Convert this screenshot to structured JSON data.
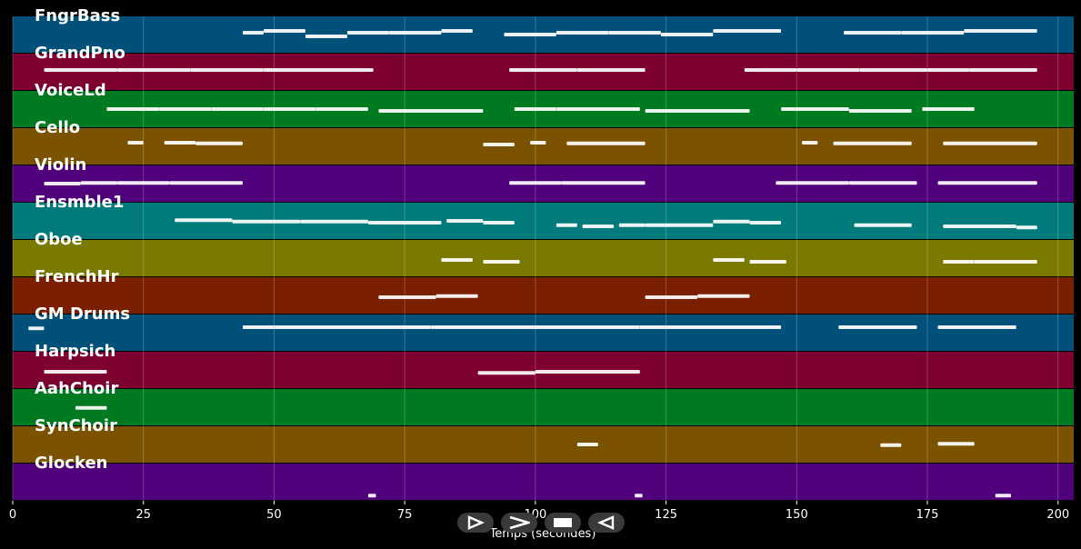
{
  "axis": {
    "xlabel": "Temps (secondes)",
    "xmin": 0,
    "xmax": 203,
    "ticks": [
      0,
      25,
      50,
      75,
      100,
      125,
      150,
      175,
      200
    ]
  },
  "controls": {
    "play_icon": "play-icon",
    "forward_icon": "forward-icon",
    "stop_icon": "stop-icon",
    "rewind_icon": "rewind-icon"
  },
  "tracks": [
    {
      "name": "FngrBass",
      "color": "#00507a",
      "notes": [
        [
          44,
          48,
          0.55
        ],
        [
          48,
          56,
          0.6
        ],
        [
          56,
          64,
          0.45
        ],
        [
          64,
          72,
          0.55
        ],
        [
          72,
          82,
          0.55
        ],
        [
          82,
          88,
          0.6
        ],
        [
          94,
          104,
          0.5
        ],
        [
          104,
          114,
          0.55
        ],
        [
          114,
          124,
          0.55
        ],
        [
          124,
          134,
          0.5
        ],
        [
          134,
          147,
          0.6
        ],
        [
          159,
          170,
          0.55
        ],
        [
          170,
          182,
          0.55
        ],
        [
          182,
          196,
          0.6
        ]
      ]
    },
    {
      "name": "GrandPno",
      "color": "#7e0030",
      "notes": [
        [
          6,
          20,
          0.55
        ],
        [
          20,
          34,
          0.55
        ],
        [
          34,
          48,
          0.55
        ],
        [
          48,
          69,
          0.55
        ],
        [
          95,
          108,
          0.55
        ],
        [
          108,
          121,
          0.55
        ],
        [
          140,
          150,
          0.55
        ],
        [
          150,
          162,
          0.55
        ],
        [
          162,
          175,
          0.55
        ],
        [
          175,
          183,
          0.55
        ],
        [
          183,
          196,
          0.55
        ]
      ]
    },
    {
      "name": "VoiceLd",
      "color": "#007a20",
      "notes": [
        [
          18,
          28,
          0.5
        ],
        [
          28,
          38,
          0.5
        ],
        [
          38,
          48,
          0.5
        ],
        [
          48,
          58,
          0.5
        ],
        [
          58,
          68,
          0.5
        ],
        [
          70,
          90,
          0.45
        ],
        [
          96,
          104,
          0.5
        ],
        [
          104,
          120,
          0.5
        ],
        [
          121,
          141,
          0.45
        ],
        [
          147,
          160,
          0.5
        ],
        [
          160,
          172,
          0.45
        ],
        [
          174,
          184,
          0.5
        ]
      ]
    },
    {
      "name": "Cello",
      "color": "#7a5200",
      "notes": [
        [
          22,
          25,
          0.6
        ],
        [
          29,
          35,
          0.6
        ],
        [
          35,
          44,
          0.58
        ],
        [
          90,
          96,
          0.55
        ],
        [
          99,
          102,
          0.6
        ],
        [
          106,
          121,
          0.58
        ],
        [
          151,
          154,
          0.6
        ],
        [
          157,
          172,
          0.58
        ],
        [
          178,
          196,
          0.58
        ]
      ]
    },
    {
      "name": "Violin",
      "color": "#50007a",
      "notes": [
        [
          6,
          13,
          0.5
        ],
        [
          13,
          20,
          0.52
        ],
        [
          20,
          30,
          0.52
        ],
        [
          30,
          44,
          0.52
        ],
        [
          95,
          105,
          0.52
        ],
        [
          105,
          121,
          0.52
        ],
        [
          146,
          160,
          0.52
        ],
        [
          160,
          173,
          0.52
        ],
        [
          177,
          196,
          0.52
        ]
      ]
    },
    {
      "name": "Ensmble1",
      "color": "#007a7a",
      "notes": [
        [
          31,
          42,
          0.52
        ],
        [
          42,
          55,
          0.48
        ],
        [
          55,
          68,
          0.48
        ],
        [
          68,
          82,
          0.45
        ],
        [
          83,
          90,
          0.5
        ],
        [
          90,
          96,
          0.45
        ],
        [
          104,
          108,
          0.38
        ],
        [
          109,
          115,
          0.35
        ],
        [
          116,
          121,
          0.38
        ],
        [
          121,
          134,
          0.38
        ],
        [
          134,
          141,
          0.48
        ],
        [
          141,
          147,
          0.45
        ],
        [
          161,
          172,
          0.38
        ],
        [
          178,
          192,
          0.35
        ],
        [
          192,
          196,
          0.32
        ]
      ]
    },
    {
      "name": "Oboe",
      "color": "#7a7a00",
      "notes": [
        [
          82,
          88,
          0.45
        ],
        [
          90,
          97,
          0.4
        ],
        [
          134,
          140,
          0.45
        ],
        [
          141,
          148,
          0.4
        ],
        [
          178,
          184,
          0.4
        ],
        [
          184,
          196,
          0.4
        ]
      ]
    },
    {
      "name": "FrenchHr",
      "color": "#7a2000",
      "notes": [
        [
          70,
          81,
          0.45
        ],
        [
          81,
          89,
          0.48
        ],
        [
          121,
          131,
          0.45
        ],
        [
          131,
          141,
          0.48
        ]
      ]
    },
    {
      "name": "GM Drums",
      "color": "#00507a",
      "notes": [
        [
          3,
          6,
          0.62
        ],
        [
          44,
          80,
          0.65
        ],
        [
          80,
          120,
          0.65
        ],
        [
          120,
          147,
          0.65
        ],
        [
          158,
          173,
          0.65
        ],
        [
          177,
          192,
          0.65
        ]
      ]
    },
    {
      "name": "Harpsich",
      "color": "#7e0030",
      "notes": [
        [
          6,
          18,
          0.45
        ],
        [
          89,
          100,
          0.42
        ],
        [
          100,
          120,
          0.45
        ]
      ]
    },
    {
      "name": "AahChoir",
      "color": "#007a20",
      "notes": [
        [
          12,
          18,
          0.48
        ]
      ]
    },
    {
      "name": "SynChoir",
      "color": "#7a5200",
      "notes": [
        [
          108,
          112,
          0.5
        ],
        [
          166,
          170,
          0.48
        ],
        [
          177,
          184,
          0.52
        ]
      ]
    },
    {
      "name": "Glocken",
      "color": "#50007a",
      "notes": [
        [
          68,
          69.5,
          0.12
        ],
        [
          119,
          120.5,
          0.12
        ],
        [
          188,
          191,
          0.12
        ]
      ]
    }
  ]
}
